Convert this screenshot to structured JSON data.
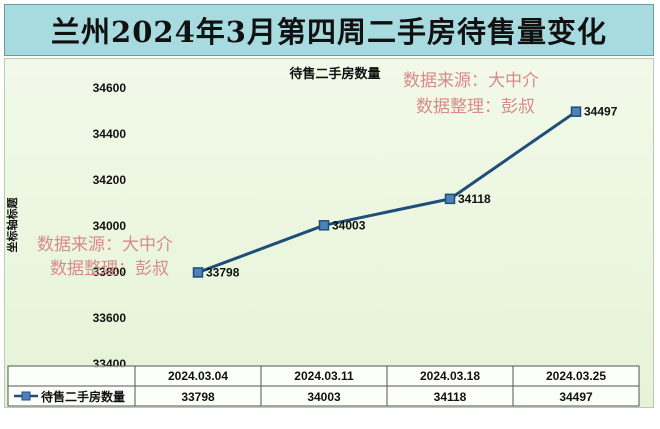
{
  "title": "兰州2024年3月第四周二手房待售量变化",
  "chart_data": {
    "type": "line",
    "title": "待售二手房数量",
    "ylabel": "坐标轴标题",
    "xlabel": "",
    "ylim": [
      33400,
      34600
    ],
    "yticks": [
      "34600",
      "34400",
      "34200",
      "34000",
      "33800",
      "33600",
      "33400"
    ],
    "categories": [
      "2024.03.04",
      "2024.03.11",
      "2024.03.18",
      "2024.03.25"
    ],
    "series": [
      {
        "name": "待售二手房数量",
        "values": [
          33798,
          34003,
          34118,
          34497
        ],
        "labels": [
          "33798",
          "34003",
          "34118",
          "34497"
        ]
      }
    ],
    "grid": false,
    "legend": "data-table",
    "line_color": "#1f4e79",
    "marker_color": "#4f81bd"
  },
  "watermark": {
    "line1": "数据来源：大中介",
    "line2": "数据整理：彭叔"
  }
}
